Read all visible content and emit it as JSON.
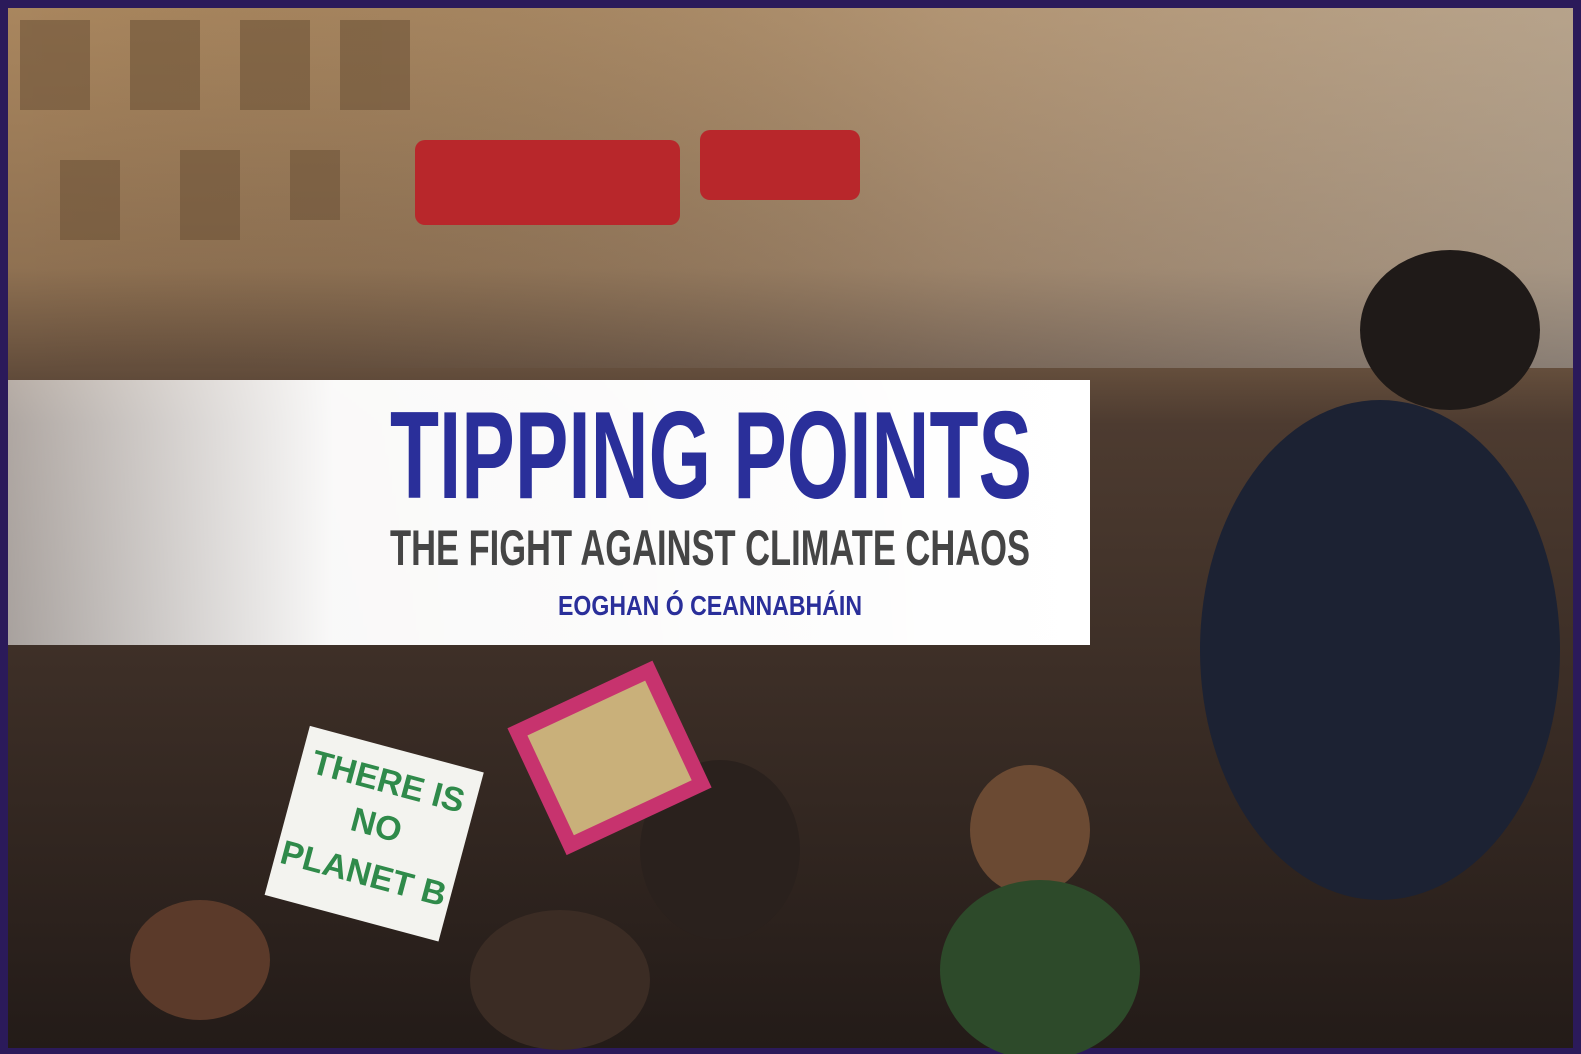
{
  "cover": {
    "title": "TIPPING POINTS",
    "subtitle": "THE FIGHT AGAINST CLIMATE CHAOS",
    "author": "EOGHAN Ó CEANNABHÁIN",
    "sign": [
      "THERE IS",
      "NO",
      "PLANET B"
    ]
  }
}
